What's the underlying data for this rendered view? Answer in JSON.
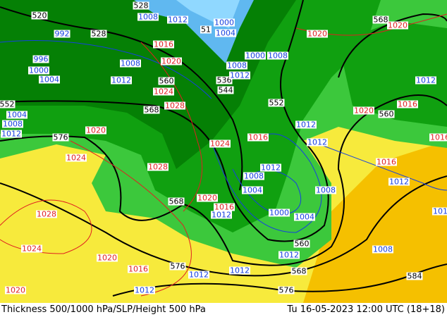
{
  "footer": {
    "title": "Thickness 500/1000 hPa/SLP/Height 500 hPa",
    "datetime": "Tu 16-05-2023 12:00 UTC (18+18)"
  },
  "colors": {
    "yellow": "#f7ea3c",
    "orange": "#f5c000",
    "green_light": "#3cc83c",
    "green": "#10a010",
    "green_dark": "#058005",
    "cold_blue": "#60b8f0",
    "isobar_low": "#1540e0",
    "isobar_high": "#e02020",
    "height_contour": "#000000"
  },
  "labels": {
    "height": [
      "520",
      "528",
      "528",
      "536",
      "544",
      "552",
      "552",
      "560",
      "568",
      "568",
      "576",
      "568",
      "560",
      "568",
      "576",
      "584",
      "576",
      "560",
      "51"
    ],
    "isobar_low": [
      "992",
      "996",
      "1000",
      "1004",
      "1008",
      "1012",
      "1008",
      "1012",
      "1000",
      "1004",
      "1004",
      "1008",
      "1012",
      "1008",
      "1012",
      "1000",
      "1008",
      "1012",
      "1012",
      "1012",
      "1012",
      "1008",
      "1004",
      "1008",
      "1012",
      "1000",
      "1004",
      "1012",
      "1012",
      "1008",
      "1012",
      "1012",
      "1012",
      "1016"
    ],
    "isobar_high": [
      "1020",
      "1020",
      "1016",
      "1020",
      "1024",
      "1028",
      "1020",
      "1024",
      "1024",
      "1016",
      "1028",
      "1028",
      "1024",
      "1020",
      "1016",
      "1020",
      "1020",
      "1016",
      "1020",
      "1016",
      "1016",
      "1016"
    ]
  }
}
